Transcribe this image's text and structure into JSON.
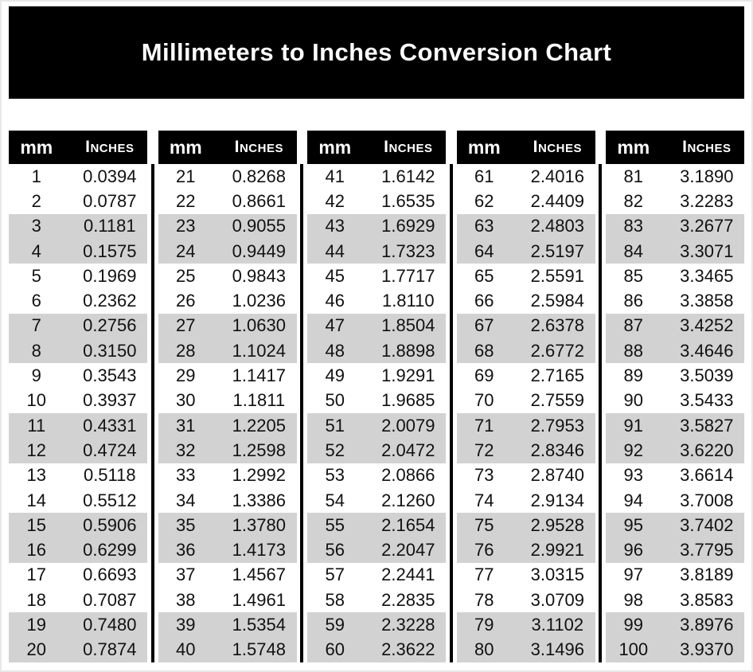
{
  "title": "Millimeters to Inches Conversion Chart",
  "table": {
    "mm_header": "mm",
    "inches_header": "Inches",
    "groups": [
      {
        "rows": [
          [
            "1",
            "0.0394"
          ],
          [
            "2",
            "0.0787"
          ],
          [
            "3",
            "0.1181"
          ],
          [
            "4",
            "0.1575"
          ],
          [
            "5",
            "0.1969"
          ],
          [
            "6",
            "0.2362"
          ],
          [
            "7",
            "0.2756"
          ],
          [
            "8",
            "0.3150"
          ],
          [
            "9",
            "0.3543"
          ],
          [
            "10",
            "0.3937"
          ],
          [
            "11",
            "0.4331"
          ],
          [
            "12",
            "0.4724"
          ],
          [
            "13",
            "0.5118"
          ],
          [
            "14",
            "0.5512"
          ],
          [
            "15",
            "0.5906"
          ],
          [
            "16",
            "0.6299"
          ],
          [
            "17",
            "0.6693"
          ],
          [
            "18",
            "0.7087"
          ],
          [
            "19",
            "0.7480"
          ],
          [
            "20",
            "0.7874"
          ]
        ]
      },
      {
        "rows": [
          [
            "21",
            "0.8268"
          ],
          [
            "22",
            "0.8661"
          ],
          [
            "23",
            "0.9055"
          ],
          [
            "24",
            "0.9449"
          ],
          [
            "25",
            "0.9843"
          ],
          [
            "26",
            "1.0236"
          ],
          [
            "27",
            "1.0630"
          ],
          [
            "28",
            "1.1024"
          ],
          [
            "29",
            "1.1417"
          ],
          [
            "30",
            "1.1811"
          ],
          [
            "31",
            "1.2205"
          ],
          [
            "32",
            "1.2598"
          ],
          [
            "33",
            "1.2992"
          ],
          [
            "34",
            "1.3386"
          ],
          [
            "35",
            "1.3780"
          ],
          [
            "36",
            "1.4173"
          ],
          [
            "37",
            "1.4567"
          ],
          [
            "38",
            "1.4961"
          ],
          [
            "39",
            "1.5354"
          ],
          [
            "40",
            "1.5748"
          ]
        ]
      },
      {
        "rows": [
          [
            "41",
            "1.6142"
          ],
          [
            "42",
            "1.6535"
          ],
          [
            "43",
            "1.6929"
          ],
          [
            "44",
            "1.7323"
          ],
          [
            "45",
            "1.7717"
          ],
          [
            "46",
            "1.8110"
          ],
          [
            "47",
            "1.8504"
          ],
          [
            "48",
            "1.8898"
          ],
          [
            "49",
            "1.9291"
          ],
          [
            "50",
            "1.9685"
          ],
          [
            "51",
            "2.0079"
          ],
          [
            "52",
            "2.0472"
          ],
          [
            "53",
            "2.0866"
          ],
          [
            "54",
            "2.1260"
          ],
          [
            "55",
            "2.1654"
          ],
          [
            "56",
            "2.2047"
          ],
          [
            "57",
            "2.2441"
          ],
          [
            "58",
            "2.2835"
          ],
          [
            "59",
            "2.3228"
          ],
          [
            "60",
            "2.3622"
          ]
        ]
      },
      {
        "rows": [
          [
            "61",
            "2.4016"
          ],
          [
            "62",
            "2.4409"
          ],
          [
            "63",
            "2.4803"
          ],
          [
            "64",
            "2.5197"
          ],
          [
            "65",
            "2.5591"
          ],
          [
            "66",
            "2.5984"
          ],
          [
            "67",
            "2.6378"
          ],
          [
            "68",
            "2.6772"
          ],
          [
            "69",
            "2.7165"
          ],
          [
            "70",
            "2.7559"
          ],
          [
            "71",
            "2.7953"
          ],
          [
            "72",
            "2.8346"
          ],
          [
            "73",
            "2.8740"
          ],
          [
            "74",
            "2.9134"
          ],
          [
            "75",
            "2.9528"
          ],
          [
            "76",
            "2.9921"
          ],
          [
            "77",
            "3.0315"
          ],
          [
            "78",
            "3.0709"
          ],
          [
            "79",
            "3.1102"
          ],
          [
            "80",
            "3.1496"
          ]
        ]
      },
      {
        "rows": [
          [
            "81",
            "3.1890"
          ],
          [
            "82",
            "3.2283"
          ],
          [
            "83",
            "3.2677"
          ],
          [
            "84",
            "3.3071"
          ],
          [
            "85",
            "3.3465"
          ],
          [
            "86",
            "3.3858"
          ],
          [
            "87",
            "3.4252"
          ],
          [
            "88",
            "3.4646"
          ],
          [
            "89",
            "3.5039"
          ],
          [
            "90",
            "3.5433"
          ],
          [
            "91",
            "3.5827"
          ],
          [
            "92",
            "3.6220"
          ],
          [
            "93",
            "3.6614"
          ],
          [
            "94",
            "3.7008"
          ],
          [
            "95",
            "3.7402"
          ],
          [
            "96",
            "3.7795"
          ],
          [
            "97",
            "3.8189"
          ],
          [
            "98",
            "3.8583"
          ],
          [
            "99",
            "3.8976"
          ],
          [
            "100",
            "3.9370"
          ]
        ]
      }
    ]
  },
  "colors": {
    "banner_bg": "#000000",
    "banner_text": "#ffffff",
    "header_bg": "#000000",
    "header_text": "#ffffff",
    "row_bg": "#ffffff",
    "row_alt_bg": "#d2d2d2",
    "separator": "#000000"
  }
}
